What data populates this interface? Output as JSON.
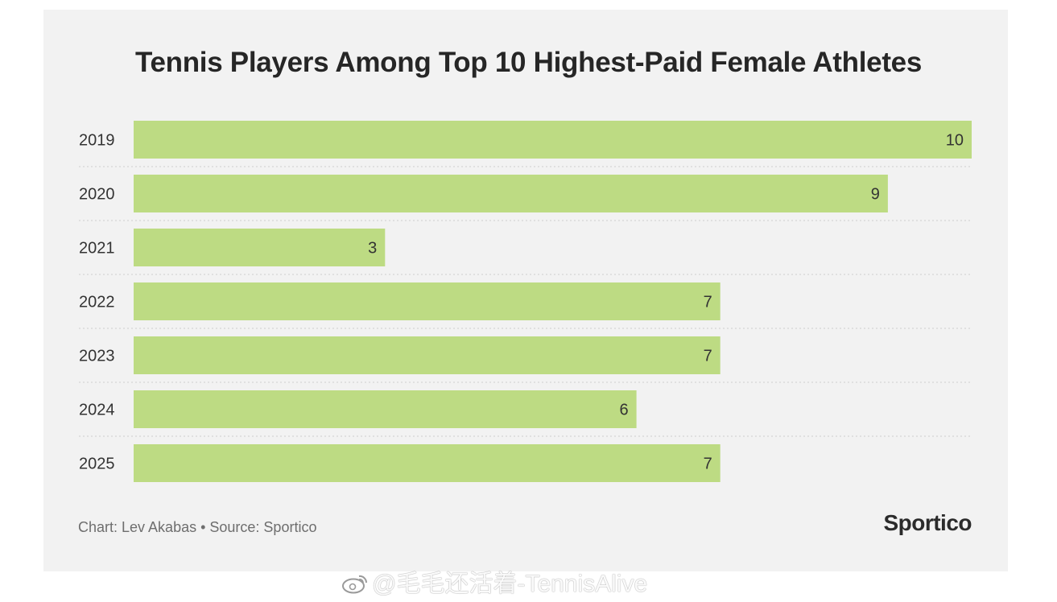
{
  "chart_data": {
    "type": "bar",
    "orientation": "horizontal",
    "title": "Tennis Players Among Top 10 Highest-Paid Female Athletes",
    "categories": [
      "2019",
      "2020",
      "2021",
      "2022",
      "2023",
      "2024",
      "2025"
    ],
    "values": [
      10,
      9,
      3,
      7,
      7,
      6,
      7
    ],
    "xlim": [
      0,
      10
    ],
    "grid": "dotted horizontal separators between rows",
    "legend": "none",
    "bar_color": "#bddb83"
  },
  "footer": {
    "credit": "Chart: Lev Akabas • Source: Sportico",
    "brand": "Sportico"
  },
  "watermark": {
    "icon": "weibo-icon",
    "text": "@毛毛还活着-TennisAlive"
  }
}
